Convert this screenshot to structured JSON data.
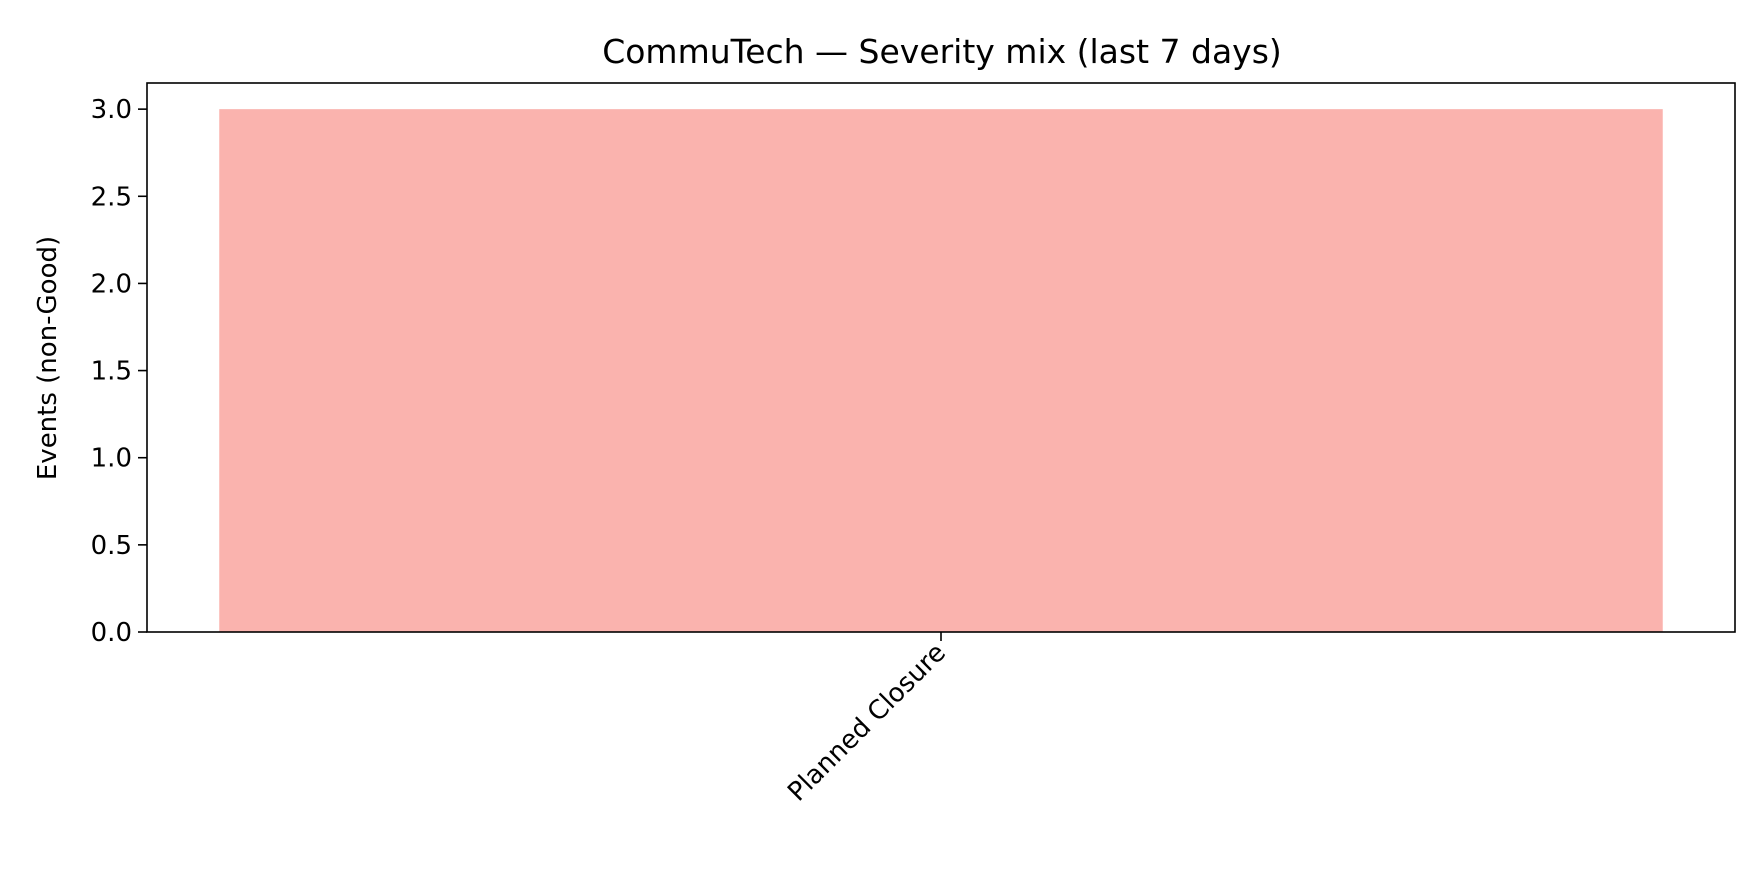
{
  "chart_data": {
    "type": "bar",
    "title": "CommuTech — Severity mix (last 7 days)",
    "xlabel": "",
    "ylabel": "Events (non-Good)",
    "categories": [
      "Planned Closure"
    ],
    "values": [
      3.0
    ],
    "ylim": [
      0,
      3.15
    ],
    "yticks": [
      0.0,
      0.5,
      1.0,
      1.5,
      2.0,
      2.5,
      3.0
    ],
    "ytick_labels": [
      "0.0",
      "0.5",
      "1.0",
      "1.5",
      "2.0",
      "2.5",
      "3.0"
    ],
    "bar_color": "#fab3ae",
    "grid": false,
    "legend": "none"
  }
}
